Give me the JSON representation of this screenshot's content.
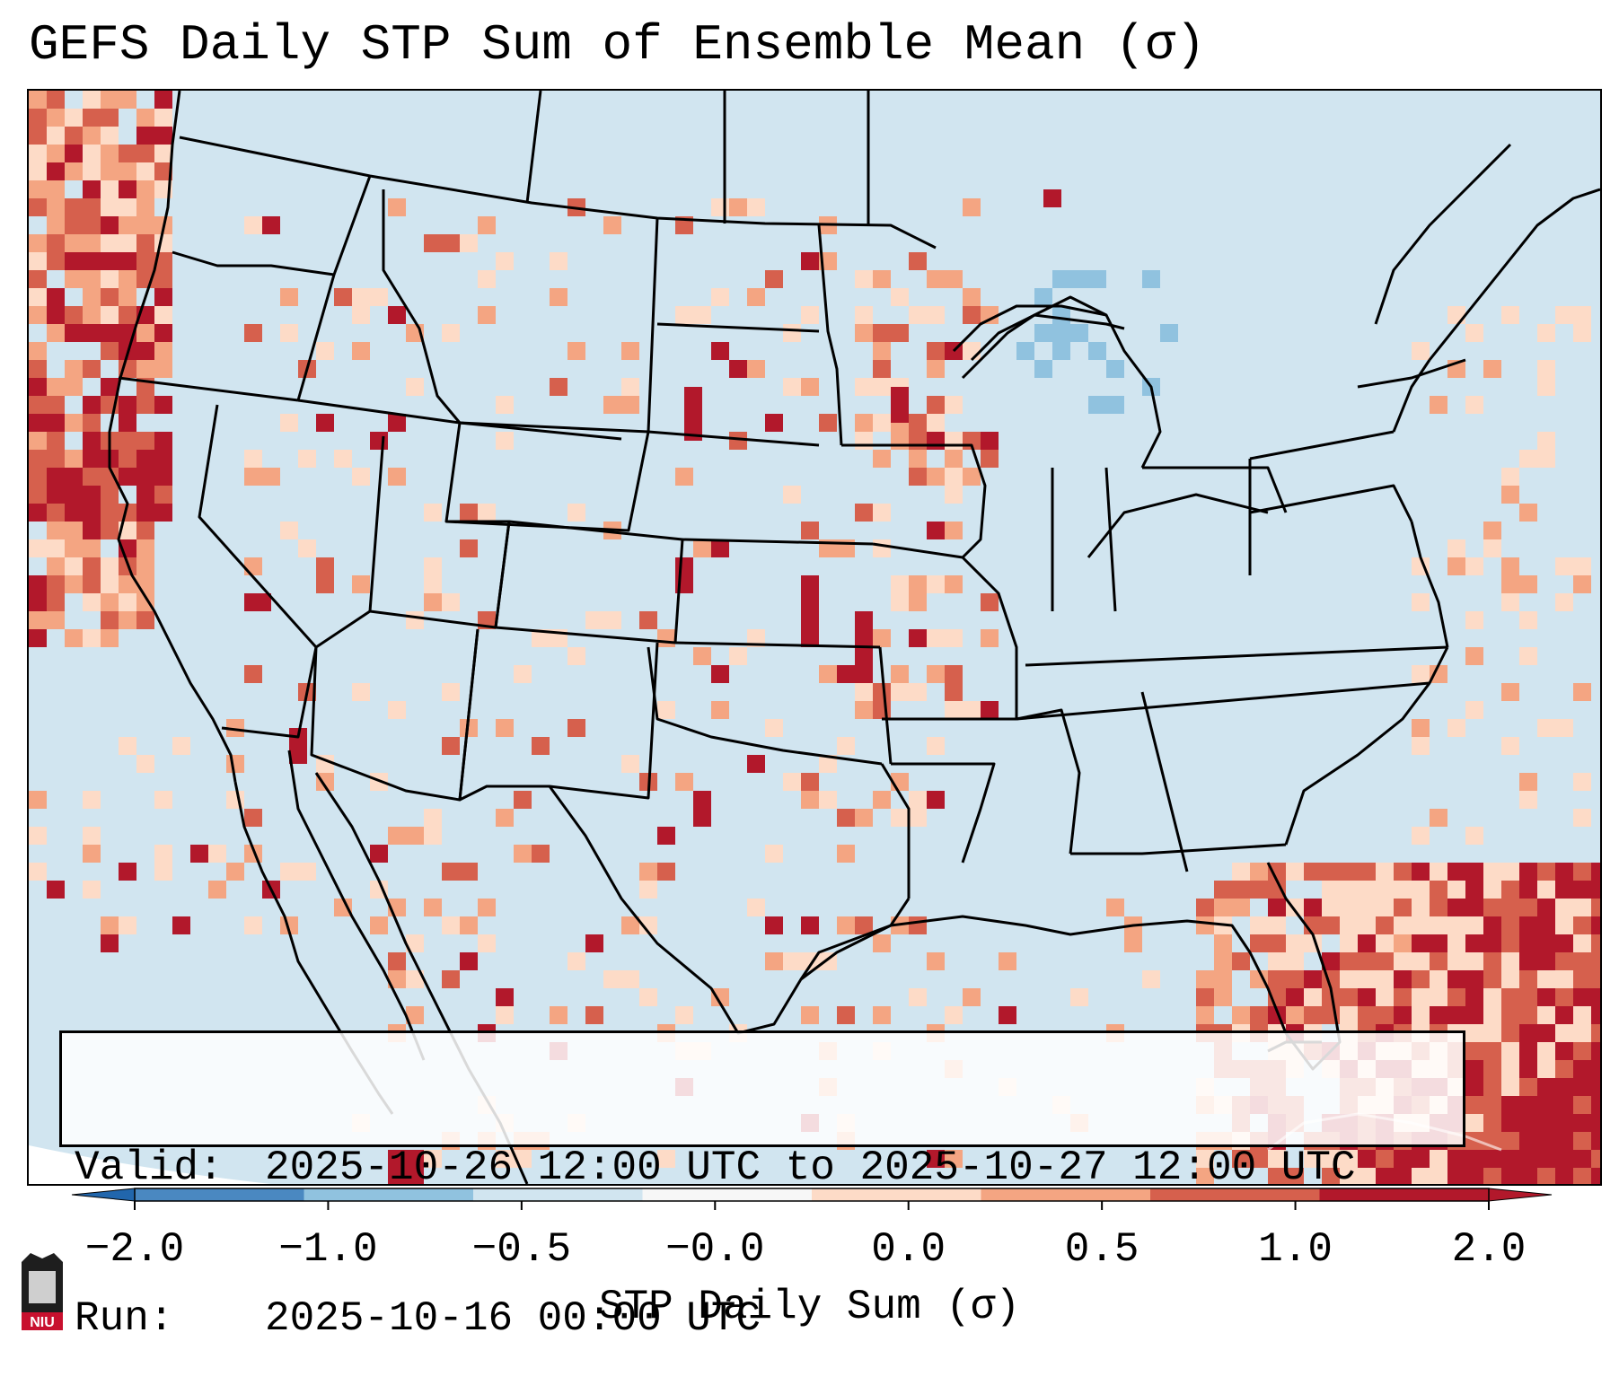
{
  "title": "GEFS Daily STP Sum of Ensemble Mean (σ)",
  "valid": {
    "label": "Valid:",
    "value": "2025-10-26 12:00 UTC to 2025-10-27 12:00 UTC"
  },
  "run": {
    "label": "Run:",
    "value": "2025-10-16 00:00 UTC"
  },
  "colorbar": {
    "label": "STP Daily Sum (σ)",
    "ticks": [
      "−2.0",
      "−1.0",
      "−0.5",
      "−0.0",
      "0.0",
      "0.5",
      "1.0",
      "2.0"
    ],
    "colors": [
      "#4a88c1",
      "#90c2df",
      "#d1e5f0",
      "#f7f7f7",
      "#fddbc7",
      "#f4a582",
      "#d6604d",
      "#b2182b"
    ]
  },
  "logo": {
    "text": "NIU"
  },
  "map": {
    "ocean_color": "#d1e5f0",
    "land_color": "#d1e5f0",
    "border_color": "#000000"
  }
}
